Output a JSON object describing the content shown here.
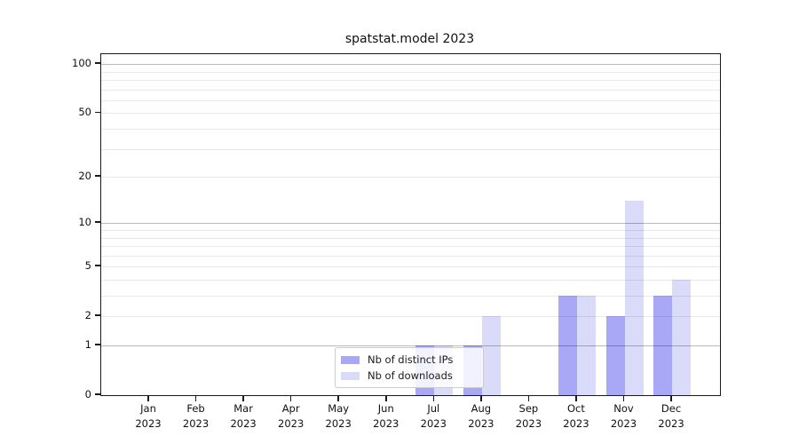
{
  "page": {
    "background": "#ffffff"
  },
  "chart_data": {
    "type": "bar",
    "title": "spatstat.model 2023",
    "x_ticks": [
      {
        "label": "Jan",
        "sub": "2023"
      },
      {
        "label": "Feb",
        "sub": "2023"
      },
      {
        "label": "Mar",
        "sub": "2023"
      },
      {
        "label": "Apr",
        "sub": "2023"
      },
      {
        "label": "May",
        "sub": "2023"
      },
      {
        "label": "Jun",
        "sub": "2023"
      },
      {
        "label": "Jul",
        "sub": "2023"
      },
      {
        "label": "Aug",
        "sub": "2023"
      },
      {
        "label": "Sep",
        "sub": "2023"
      },
      {
        "label": "Oct",
        "sub": "2023"
      },
      {
        "label": "Nov",
        "sub": "2023"
      },
      {
        "label": "Dec",
        "sub": "2023"
      }
    ],
    "series": [
      {
        "name": "Nb of distinct IPs",
        "color": "#a8a8f7",
        "values": [
          0,
          0,
          0,
          0,
          0,
          0,
          1,
          1,
          0,
          3,
          2,
          3
        ]
      },
      {
        "name": "Nb of downloads",
        "color": "#dadaf9",
        "values": [
          0,
          0,
          0,
          0,
          0,
          0,
          1,
          2,
          0,
          3,
          14,
          4
        ]
      }
    ],
    "yscale": "log1p",
    "ylim": [
      0,
      115
    ],
    "yticks": [
      0,
      1,
      2,
      5,
      10,
      20,
      50,
      100
    ],
    "major_gridlines": [
      1,
      10,
      100
    ],
    "minor_gridlines": [
      2,
      3,
      4,
      5,
      6,
      7,
      8,
      9,
      20,
      30,
      40,
      50,
      60,
      70,
      80,
      90
    ],
    "grid": true,
    "legend_position": "lower center inside"
  }
}
